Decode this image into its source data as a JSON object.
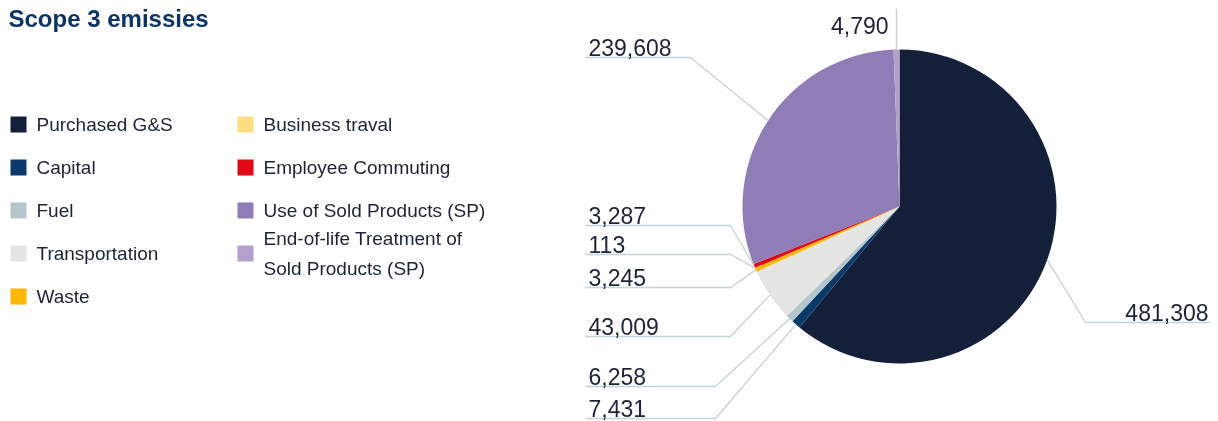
{
  "chart_data": {
    "type": "pie",
    "title": "Scope 3 emissies",
    "categories": [
      "Purchased G&S",
      "Capital",
      "Fuel",
      "Transportation",
      "Waste",
      "Business traval",
      "Employee Commuting",
      "Use of Sold Products (SP)",
      "End-of-life Treatment of Sold Products (SP)"
    ],
    "values": [
      481308,
      7431,
      6258,
      43009,
      3245,
      113,
      3287,
      239608,
      4790
    ],
    "colors": [
      "#14203a",
      "#0a3a6b",
      "#b4c6cc",
      "#e5e5e3",
      "#ffb800",
      "#ffdd80",
      "#e30613",
      "#907cb7",
      "#b3a0cc"
    ],
    "value_labels": [
      "481,308",
      "7,431",
      "6,258",
      "43,009",
      "3,245",
      "113",
      "3,287",
      "239,608",
      "4,790"
    ],
    "legend": "left"
  }
}
